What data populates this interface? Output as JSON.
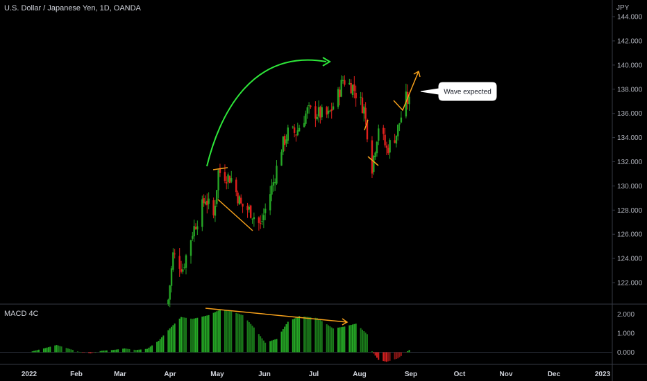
{
  "header": {
    "symbol_title": "U.S. Dollar / Japanese Yen, 1D, OANDA"
  },
  "colors": {
    "background": "#000000",
    "up": "#26a626",
    "down": "#e0201d",
    "hist_up": "#25a525",
    "hist_down": "#d21f1f",
    "annotation_green": "#2ee83a",
    "annotation_orange": "#f7a11b",
    "separator": "#363a45"
  },
  "annotations": {
    "callout_text": "Wave expected"
  },
  "chart_data": [
    {
      "type": "line",
      "subtype": "candlestick",
      "title": "U.S. Dollar / Japanese Yen, 1D, OANDA",
      "unit": "JPY",
      "ylim": [
        120.0,
        145.0
      ],
      "y_ticks": [
        "144.000",
        "142.000",
        "140.000",
        "138.000",
        "136.000",
        "134.000",
        "132.000",
        "130.000",
        "128.000",
        "126.000",
        "124.000",
        "122.000"
      ],
      "y_tick_values": [
        144,
        142,
        140,
        138,
        136,
        134,
        132,
        130,
        128,
        126,
        124,
        122
      ],
      "x_ticks": [
        "2022",
        "Feb",
        "Mar",
        "Apr",
        "May",
        "Jun",
        "Jul",
        "Aug",
        "Sep",
        "Oct",
        "Nov",
        "Dec",
        "2023"
      ],
      "series": [
        {
          "close_path": [
            [
              "Mar 28",
              120.6
            ],
            [
              "Mar 31",
              124.3
            ],
            [
              "Apr 6",
              123.2
            ],
            [
              "Apr 12",
              126.2
            ],
            [
              "Apr 20",
              129.0
            ],
            [
              "Apr 25",
              127.5
            ],
            [
              "Apr 28",
              131.2
            ],
            [
              "May 6",
              130.6
            ],
            [
              "May 12",
              128.4
            ],
            [
              "May 18",
              127.9
            ],
            [
              "May 24",
              126.7
            ],
            [
              "Jun 1",
              130.3
            ],
            [
              "Jun 6",
              133.2
            ],
            [
              "Jun 10",
              134.4
            ],
            [
              "Jun 15",
              134.4
            ],
            [
              "Jun 22",
              136.2
            ],
            [
              "Jun 28",
              136.0
            ],
            [
              "Jul 5",
              135.8
            ],
            [
              "Jul 11",
              137.5
            ],
            [
              "Jul 14",
              138.8
            ],
            [
              "Jul 20",
              138.2
            ],
            [
              "Jul 27",
              136.4
            ],
            [
              "Aug 1",
              131.6
            ],
            [
              "Aug 5",
              135.0
            ],
            [
              "Aug 10",
              133.0
            ],
            [
              "Aug 16",
              134.3
            ],
            [
              "Aug 22",
              137.2
            ],
            [
              "Aug 24",
              136.9
            ]
          ]
        }
      ],
      "legend_position": "none",
      "grid": false
    },
    {
      "type": "bar",
      "title": "MACD 4C",
      "y_ticks": [
        "2.000",
        "1.000",
        "0.000"
      ],
      "y_tick_values": [
        2,
        1,
        0
      ],
      "ylim": [
        -0.6,
        2.3
      ],
      "series": [
        {
          "values_path": [
            [
              "Jan 3",
              0.05
            ],
            [
              "Jan 10",
              0.2
            ],
            [
              "Jan 18",
              0.38
            ],
            [
              "Jan 25",
              0.2
            ],
            [
              "Feb 1",
              0.02
            ],
            [
              "Feb 8",
              -0.06
            ],
            [
              "Feb 15",
              0.08
            ],
            [
              "Feb 22",
              0.12
            ],
            [
              "Mar 1",
              0.2
            ],
            [
              "Mar 8",
              0.12
            ],
            [
              "Mar 15",
              0.18
            ],
            [
              "Mar 22",
              0.6
            ],
            [
              "Mar 29",
              1.25
            ],
            [
              "Apr 5",
              1.85
            ],
            [
              "Apr 12",
              1.75
            ],
            [
              "Apr 22",
              1.95
            ],
            [
              "Apr 29",
              2.23
            ],
            [
              "May 6",
              2.15
            ],
            [
              "May 13",
              1.95
            ],
            [
              "May 20",
              1.3
            ],
            [
              "May 27",
              0.5
            ],
            [
              "Jun 3",
              0.7
            ],
            [
              "Jun 10",
              1.6
            ],
            [
              "Jun 17",
              1.9
            ],
            [
              "Jun 28",
              1.8
            ],
            [
              "Jul 8",
              1.25
            ],
            [
              "Jul 15",
              1.35
            ],
            [
              "Jul 22",
              1.5
            ],
            [
              "Jul 29",
              0.95
            ],
            [
              "Aug 1",
              0.05
            ],
            [
              "Aug 5",
              -0.4
            ],
            [
              "Aug 10",
              -0.5
            ],
            [
              "Aug 17",
              -0.32
            ],
            [
              "Aug 24",
              0.12
            ]
          ]
        }
      ],
      "legend_position": "none",
      "grid": false
    }
  ]
}
